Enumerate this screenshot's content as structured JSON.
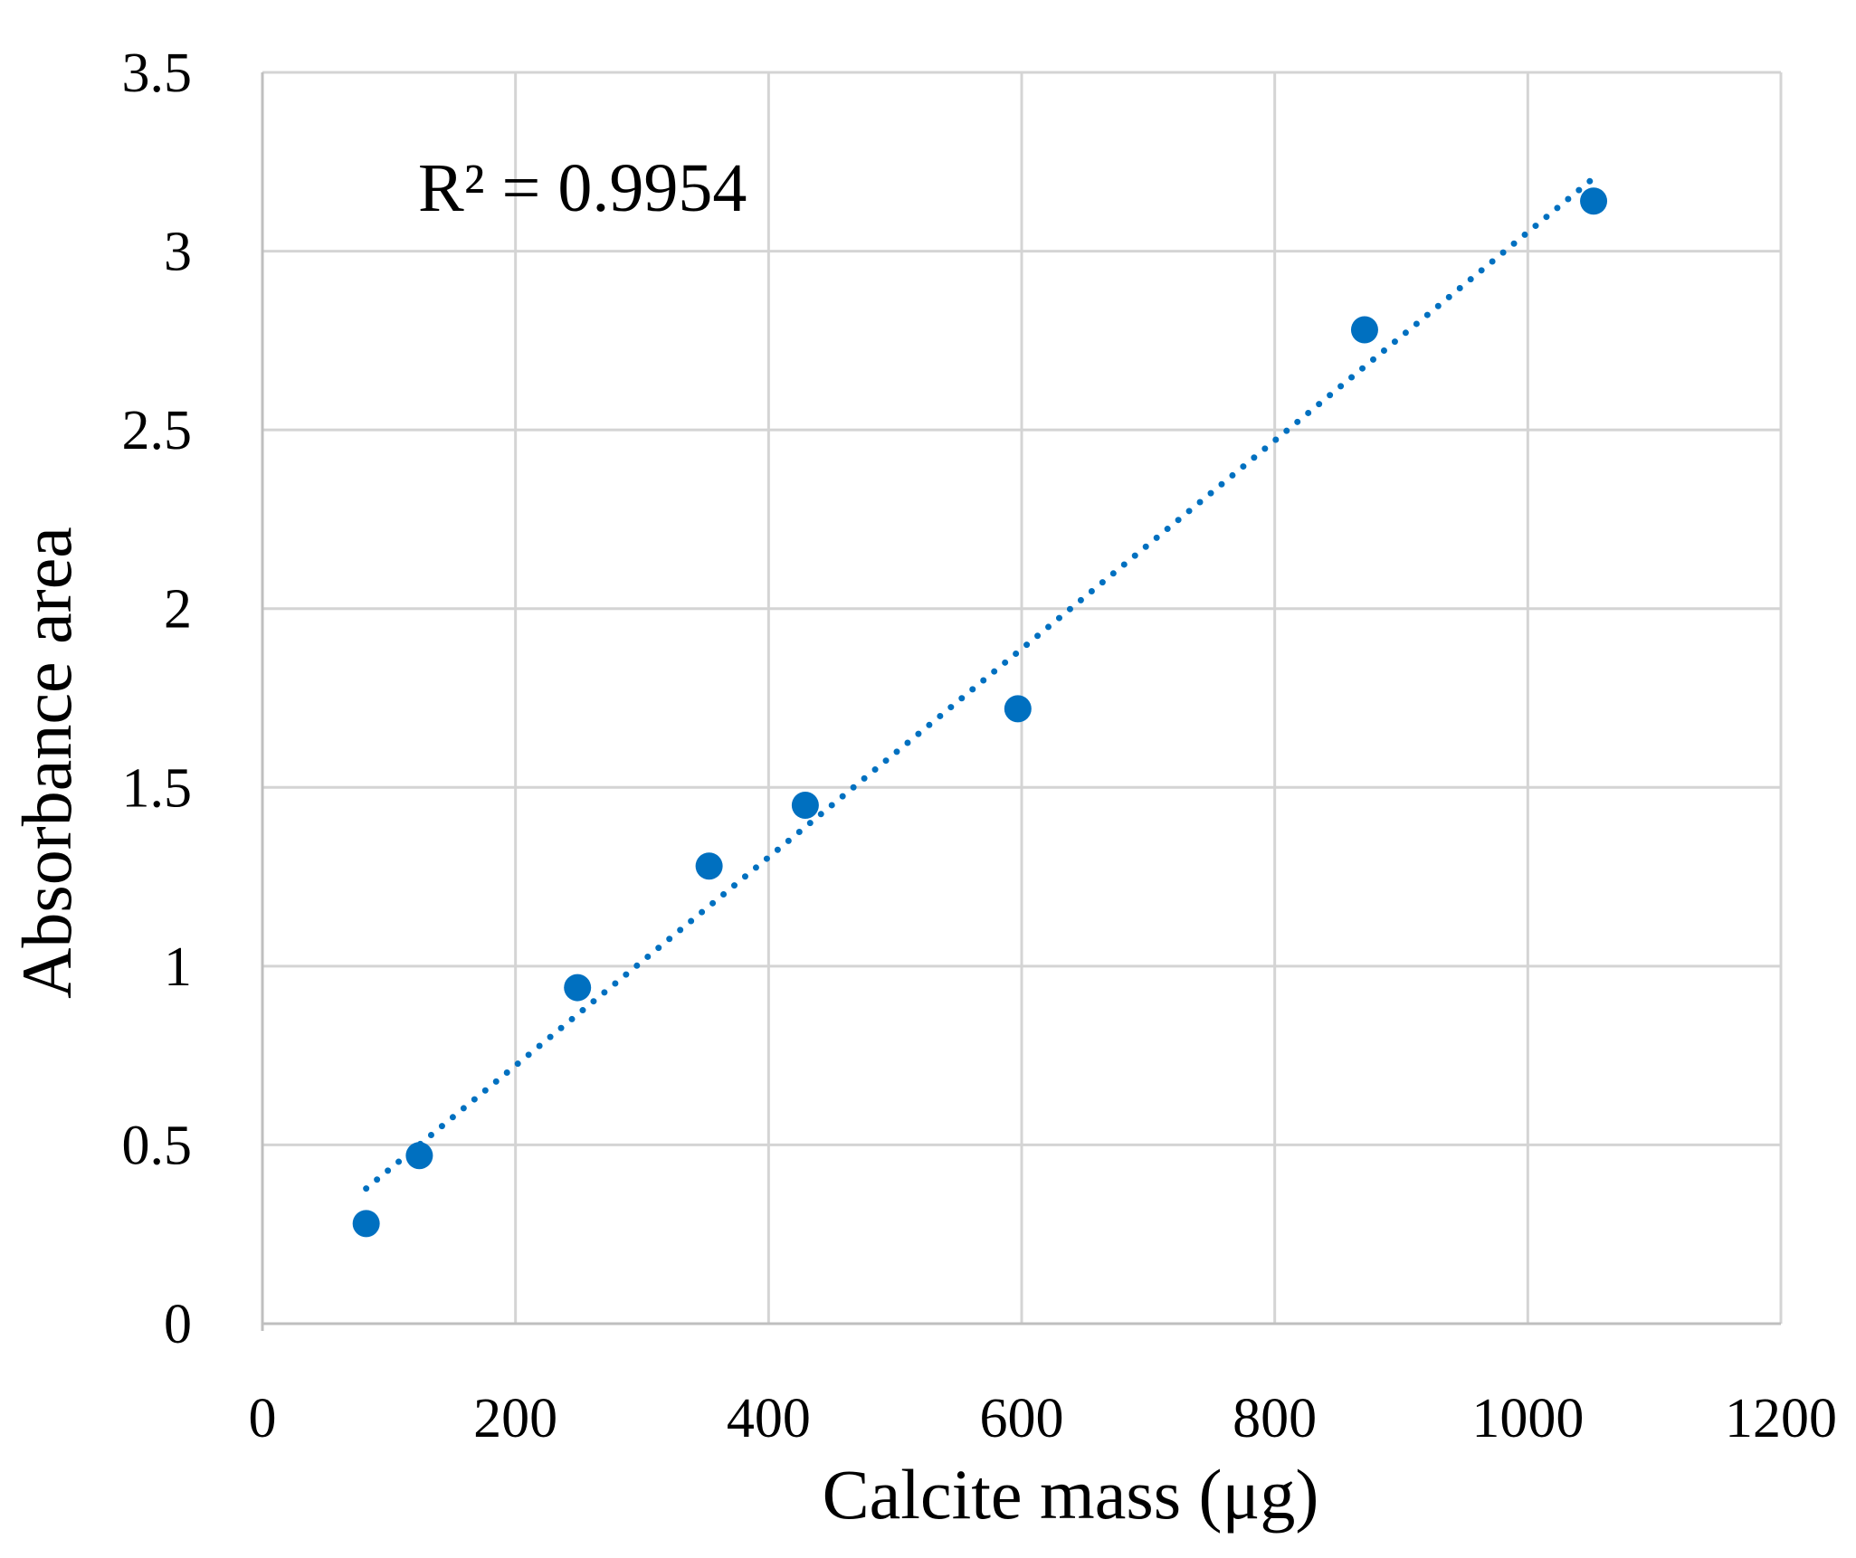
{
  "chart_data": {
    "type": "scatter",
    "xlabel": "Calcite mass (μg)",
    "ylabel": "Absorbance area",
    "xlim": [
      0,
      1200
    ],
    "ylim": [
      0,
      3.5
    ],
    "x_ticks": [
      "0",
      "200",
      "400",
      "600",
      "800",
      "1000",
      "1200"
    ],
    "y_ticks": [
      "0",
      "0.5",
      "1",
      "1.5",
      "2",
      "2.5",
      "3",
      "3.5"
    ],
    "grid": true,
    "series": [
      {
        "color": "#0070c0",
        "marker": "circle",
        "points": [
          {
            "x": 82,
            "y": 0.28
          },
          {
            "x": 124,
            "y": 0.47
          },
          {
            "x": 249,
            "y": 0.94
          },
          {
            "x": 353,
            "y": 1.28
          },
          {
            "x": 429,
            "y": 1.45
          },
          {
            "x": 597,
            "y": 1.72
          },
          {
            "x": 871,
            "y": 2.78
          },
          {
            "x": 1052,
            "y": 3.14
          }
        ]
      }
    ],
    "trendline": {
      "type": "linear",
      "style": "dotted",
      "color": "#0070c0",
      "x_range": [
        82,
        1052
      ],
      "annotation": "R² = 0.9954"
    }
  }
}
